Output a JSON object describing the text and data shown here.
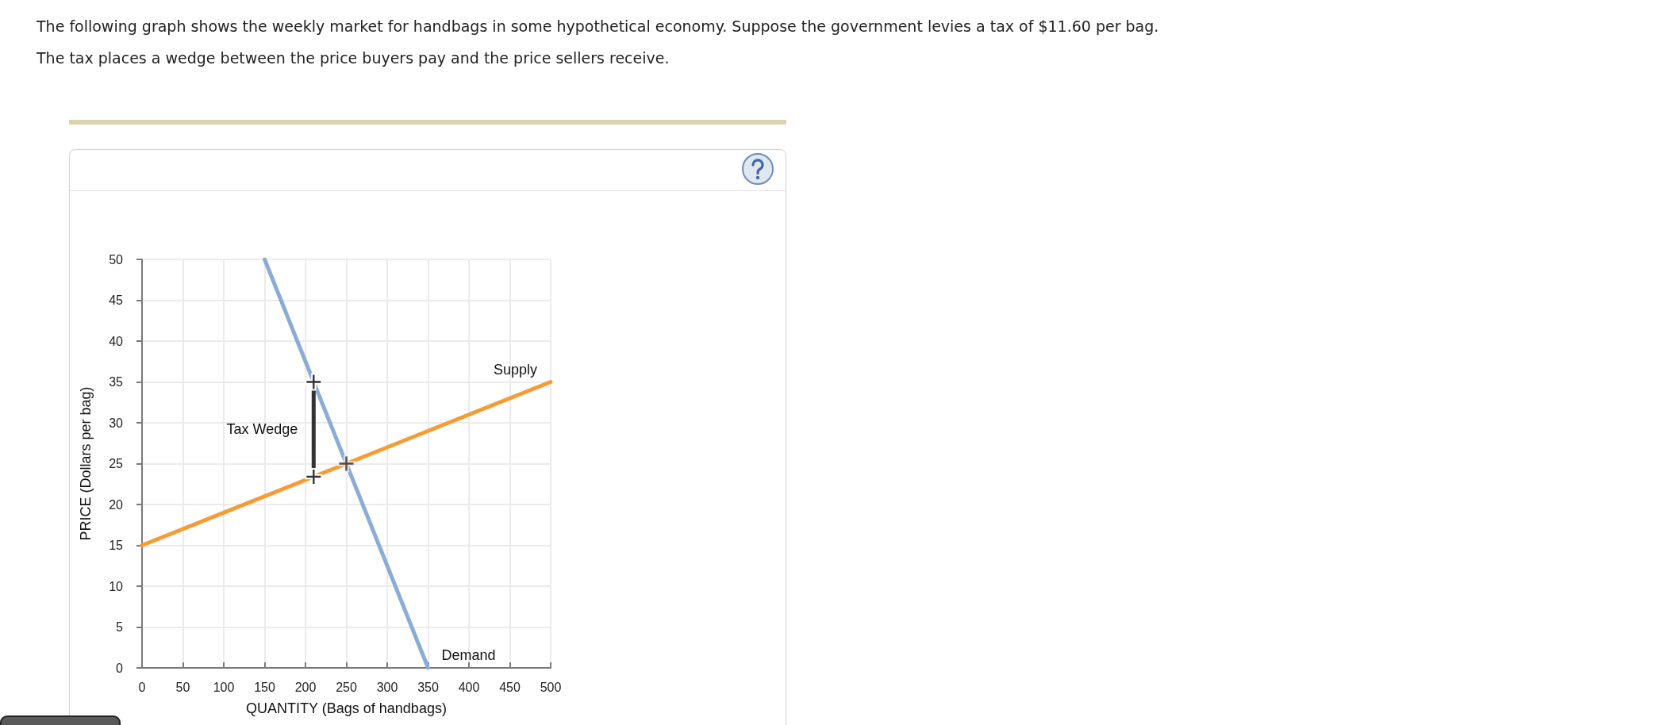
{
  "chart_data": {
    "type": "line",
    "title": "The following graph shows the weekly market for handbags in some hypothetical economy. Suppose the government levies a tax of $11.60 per bag.",
    "subtitle": "The tax places a wedge between the price buyers pay and the price sellers receive.",
    "xlabel": "QUANTITY (Bags of handbags)",
    "ylabel": "PRICE (Dollars per bag)",
    "series": [
      {
        "name": "Demand",
        "color": "#8badd3",
        "x": [
          150,
          350
        ],
        "values": [
          50,
          0
        ]
      },
      {
        "name": "Supply",
        "color": "#f49d37",
        "x": [
          0,
          500
        ],
        "values": [
          15,
          35
        ]
      },
      {
        "name": "Tax Wedge",
        "color": "#333333",
        "x": [
          210,
          210
        ],
        "values": [
          23.4,
          35
        ],
        "marker": "cross"
      },
      {
        "type": "scatter",
        "color": "#333333",
        "x": [
          250
        ],
        "values": [
          25
        ],
        "marker": "cross"
      }
    ],
    "xlim": [
      0,
      500
    ],
    "xticks": [
      0,
      50,
      100,
      150,
      200,
      250,
      300,
      350,
      400,
      450,
      500
    ],
    "ylim": [
      0,
      50
    ],
    "yticks": [
      0,
      5,
      10,
      15,
      20,
      25,
      30,
      35,
      40,
      45,
      50
    ],
    "grid": true
  }
}
